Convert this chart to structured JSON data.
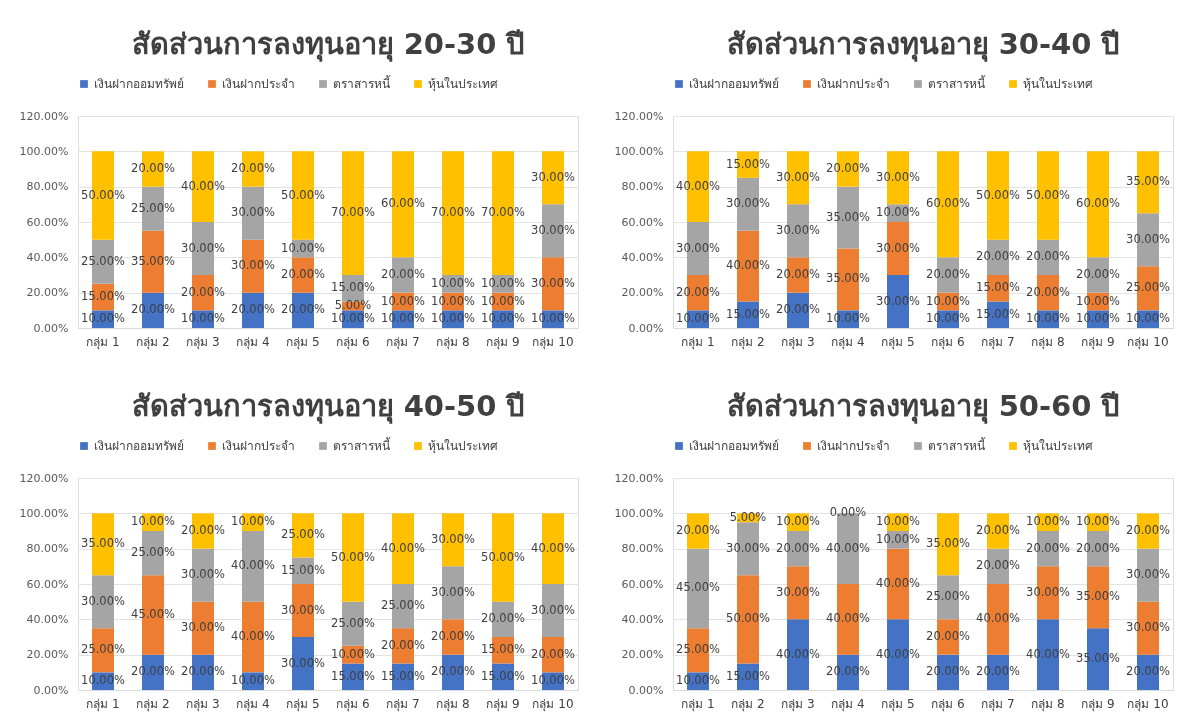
{
  "chart_data": [
    {
      "type": "bar",
      "stacked": true,
      "title": "สัดส่วนการลงทุนอายุ 20-30 ปี",
      "legend": "top",
      "grid": "y",
      "categories": [
        "กลุ่ม 1",
        "กลุ่ม 2",
        "กลุ่ม 3",
        "กลุ่ม 4",
        "กลุ่ม 5",
        "กลุ่ม 6",
        "กลุ่ม 7",
        "กลุ่ม 8",
        "กลุ่ม 9",
        "กลุ่ม 10"
      ],
      "ylim": [
        0,
        120
      ],
      "yticks": [
        {
          "value": 0,
          "label": "0.00%"
        },
        {
          "value": 20,
          "label": "20.00%"
        },
        {
          "value": 40,
          "label": "40.00%"
        },
        {
          "value": 60,
          "label": "60.00%"
        },
        {
          "value": 80,
          "label": "80.00%"
        },
        {
          "value": 100,
          "label": "100.00%"
        },
        {
          "value": 120,
          "label": "120.00%"
        }
      ],
      "series": [
        {
          "name": "เงินฝากออมทรัพย์",
          "color": "#4472c4",
          "values": [
            10,
            20,
            10,
            20,
            20,
            10,
            10,
            10,
            10,
            10
          ],
          "value_labels": [
            "10.00%",
            "20.00%",
            "10.00%",
            "20.00%",
            "20.00%",
            "10.00%",
            "10.00%",
            "10.00%",
            "10.00%",
            "10.00%"
          ]
        },
        {
          "name": "เงินฝากประจำ",
          "color": "#ed7d31",
          "values": [
            15,
            35,
            20,
            30,
            20,
            5,
            10,
            10,
            10,
            30
          ],
          "value_labels": [
            "15.00%",
            "35.00%",
            "20.00%",
            "30.00%",
            "20.00%",
            "5.00%",
            "10.00%",
            "10.00%",
            "10.00%",
            "30.00%"
          ]
        },
        {
          "name": "ตราสารหนี้",
          "color": "#a5a5a5",
          "values": [
            25,
            25,
            30,
            30,
            10,
            15,
            20,
            10,
            10,
            30
          ],
          "value_labels": [
            "25.00%",
            "25.00%",
            "30.00%",
            "30.00%",
            "10.00%",
            "15.00%",
            "20.00%",
            "10.00%",
            "10.00%",
            "30.00%"
          ]
        },
        {
          "name": "หุ้นในประเทศ",
          "color": "#ffc000",
          "values": [
            50,
            20,
            40,
            20,
            50,
            70,
            60,
            70,
            70,
            30
          ],
          "value_labels": [
            "50.00%",
            "20.00%",
            "40.00%",
            "20.00%",
            "50.00%",
            "70.00%",
            "60.00%",
            "70.00%",
            "70.00%",
            "30.00%"
          ]
        }
      ]
    },
    {
      "type": "bar",
      "stacked": true,
      "title": "สัดส่วนการลงทุนอายุ 30-40 ปี",
      "legend": "top",
      "grid": "y",
      "categories": [
        "กลุ่ม 1",
        "กลุ่ม 2",
        "กลุ่ม 3",
        "กลุ่ม 4",
        "กลุ่ม 5",
        "กลุ่ม 6",
        "กลุ่ม 7",
        "กลุ่ม 8",
        "กลุ่ม 9",
        "กลุ่ม 10"
      ],
      "ylim": [
        0,
        120
      ],
      "yticks": [
        {
          "value": 0,
          "label": "0.00%"
        },
        {
          "value": 20,
          "label": "20.00%"
        },
        {
          "value": 40,
          "label": "40.00%"
        },
        {
          "value": 60,
          "label": "60.00%"
        },
        {
          "value": 80,
          "label": "80.00%"
        },
        {
          "value": 100,
          "label": "100.00%"
        },
        {
          "value": 120,
          "label": "120.00%"
        }
      ],
      "series": [
        {
          "name": "เงินฝากออมทรัพย์",
          "color": "#4472c4",
          "values": [
            10,
            15,
            20,
            10,
            30,
            10,
            15,
            10,
            10,
            10
          ],
          "value_labels": [
            "10.00%",
            "15.00%",
            "20.00%",
            "10.00%",
            "30.00%",
            "10.00%",
            "15.00%",
            "10.00%",
            "10.00%",
            "10.00%"
          ]
        },
        {
          "name": "เงินฝากประจำ",
          "color": "#ed7d31",
          "values": [
            20,
            40,
            20,
            35,
            30,
            10,
            15,
            20,
            10,
            25
          ],
          "value_labels": [
            "20.00%",
            "40.00%",
            "20.00%",
            "35.00%",
            "30.00%",
            "10.00%",
            "15.00%",
            "20.00%",
            "10.00%",
            "25.00%"
          ]
        },
        {
          "name": "ตราสารหนี้",
          "color": "#a5a5a5",
          "values": [
            30,
            30,
            30,
            35,
            10,
            20,
            20,
            20,
            20,
            30
          ],
          "value_labels": [
            "30.00%",
            "30.00%",
            "30.00%",
            "35.00%",
            "10.00%",
            "20.00%",
            "20.00%",
            "20.00%",
            "20.00%",
            "30.00%"
          ]
        },
        {
          "name": "หุ้นในประเทศ",
          "color": "#ffc000",
          "values": [
            40,
            15,
            30,
            20,
            30,
            60,
            50,
            50,
            60,
            35
          ],
          "value_labels": [
            "40.00%",
            "15.00%",
            "30.00%",
            "20.00%",
            "30.00%",
            "60.00%",
            "50.00%",
            "50.00%",
            "60.00%",
            "35.00%"
          ]
        }
      ]
    },
    {
      "type": "bar",
      "stacked": true,
      "title": "สัดส่วนการลงทุนอายุ 40-50 ปี",
      "legend": "top",
      "grid": "y",
      "categories": [
        "กลุ่ม 1",
        "กลุ่ม 2",
        "กลุ่ม 3",
        "กลุ่ม 4",
        "กลุ่ม 5",
        "กลุ่ม 6",
        "กลุ่ม 7",
        "กลุ่ม 8",
        "กลุ่ม 9",
        "กลุ่ม 10"
      ],
      "ylim": [
        0,
        120
      ],
      "yticks": [
        {
          "value": 0,
          "label": "0.00%"
        },
        {
          "value": 20,
          "label": "20.00%"
        },
        {
          "value": 40,
          "label": "40.00%"
        },
        {
          "value": 60,
          "label": "60.00%"
        },
        {
          "value": 80,
          "label": "80.00%"
        },
        {
          "value": 100,
          "label": "100.00%"
        },
        {
          "value": 120,
          "label": "120.00%"
        }
      ],
      "series": [
        {
          "name": "เงินฝากออมทรัพย์",
          "color": "#4472c4",
          "values": [
            10,
            20,
            20,
            10,
            30,
            15,
            15,
            20,
            15,
            10
          ],
          "value_labels": [
            "10.00%",
            "20.00%",
            "20.00%",
            "10.00%",
            "30.00%",
            "15.00%",
            "15.00%",
            "20.00%",
            "15.00%",
            "10.00%"
          ]
        },
        {
          "name": "เงินฝากประจำ",
          "color": "#ed7d31",
          "values": [
            25,
            45,
            30,
            40,
            30,
            10,
            20,
            20,
            15,
            20
          ],
          "value_labels": [
            "25.00%",
            "45.00%",
            "30.00%",
            "40.00%",
            "30.00%",
            "10.00%",
            "20.00%",
            "20.00%",
            "15.00%",
            "20.00%"
          ]
        },
        {
          "name": "ตราสารหนี้",
          "color": "#a5a5a5",
          "values": [
            30,
            25,
            30,
            40,
            15,
            25,
            25,
            30,
            20,
            30
          ],
          "value_labels": [
            "30.00%",
            "25.00%",
            "30.00%",
            "40.00%",
            "15.00%",
            "25.00%",
            "25.00%",
            "30.00%",
            "20.00%",
            "30.00%"
          ]
        },
        {
          "name": "หุ้นในประเทศ",
          "color": "#ffc000",
          "values": [
            35,
            10,
            20,
            10,
            25,
            50,
            40,
            30,
            50,
            40
          ],
          "value_labels": [
            "35.00%",
            "10.00%",
            "20.00%",
            "10.00%",
            "25.00%",
            "50.00%",
            "40.00%",
            "30.00%",
            "50.00%",
            "40.00%"
          ]
        }
      ]
    },
    {
      "type": "bar",
      "stacked": true,
      "title": "สัดส่วนการลงทุนอายุ 50-60 ปี",
      "legend": "top",
      "grid": "y",
      "categories": [
        "กลุ่ม 1",
        "กลุ่ม 2",
        "กลุ่ม 3",
        "กลุ่ม 4",
        "กลุ่ม 5",
        "กลุ่ม 6",
        "กลุ่ม 7",
        "กลุ่ม 8",
        "กลุ่ม 9",
        "กลุ่ม 10"
      ],
      "ylim": [
        0,
        120
      ],
      "yticks": [
        {
          "value": 0,
          "label": "0.00%"
        },
        {
          "value": 20,
          "label": "20.00%"
        },
        {
          "value": 40,
          "label": "40.00%"
        },
        {
          "value": 60,
          "label": "60.00%"
        },
        {
          "value": 80,
          "label": "80.00%"
        },
        {
          "value": 100,
          "label": "100.00%"
        },
        {
          "value": 120,
          "label": "120.00%"
        }
      ],
      "series": [
        {
          "name": "เงินฝากออมทรัพย์",
          "color": "#4472c4",
          "values": [
            10,
            15,
            40,
            20,
            40,
            20,
            20,
            40,
            35,
            20
          ],
          "value_labels": [
            "10.00%",
            "15.00%",
            "40.00%",
            "20.00%",
            "40.00%",
            "20.00%",
            "20.00%",
            "40.00%",
            "35.00%",
            "20.00%"
          ]
        },
        {
          "name": "เงินฝากประจำ",
          "color": "#ed7d31",
          "values": [
            25,
            50,
            30,
            40,
            40,
            20,
            40,
            30,
            35,
            30
          ],
          "value_labels": [
            "25.00%",
            "50.00%",
            "30.00%",
            "40.00%",
            "40.00%",
            "20.00%",
            "40.00%",
            "30.00%",
            "35.00%",
            "30.00%"
          ]
        },
        {
          "name": "ตราสารหนี้",
          "color": "#a5a5a5",
          "values": [
            45,
            30,
            20,
            40,
            10,
            25,
            20,
            20,
            20,
            30
          ],
          "value_labels": [
            "45.00%",
            "30.00%",
            "20.00%",
            "40.00%",
            "10.00%",
            "25.00%",
            "20.00%",
            "20.00%",
            "20.00%",
            "30.00%"
          ]
        },
        {
          "name": "หุ้นในประเทศ",
          "color": "#ffc000",
          "values": [
            20,
            5,
            10,
            0,
            10,
            35,
            20,
            10,
            10,
            20
          ],
          "value_labels": [
            "20.00%",
            "5.00%",
            "10.00%",
            "0.00%",
            "10.00%",
            "35.00%",
            "20.00%",
            "10.00%",
            "10.00%",
            "20.00%"
          ]
        }
      ]
    }
  ]
}
